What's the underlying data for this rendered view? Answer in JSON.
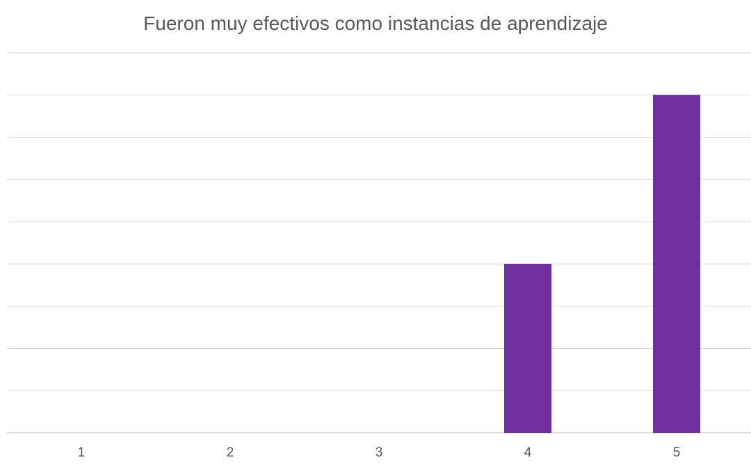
{
  "chart_data": {
    "type": "bar",
    "title": "Fueron muy efectivos como instancias de aprendizaje",
    "categories": [
      "1",
      "2",
      "3",
      "4",
      "5"
    ],
    "series": [
      {
        "values": [
          0,
          0,
          0,
          4,
          8
        ]
      }
    ],
    "ylim": [
      0,
      9
    ],
    "y_tick_step": 1,
    "y_tick_labels_shown": false,
    "grid": true,
    "legend": "none",
    "colors": {
      "bar": "#7030a0",
      "grid": "#d9d9d9",
      "text": "#595959"
    }
  }
}
